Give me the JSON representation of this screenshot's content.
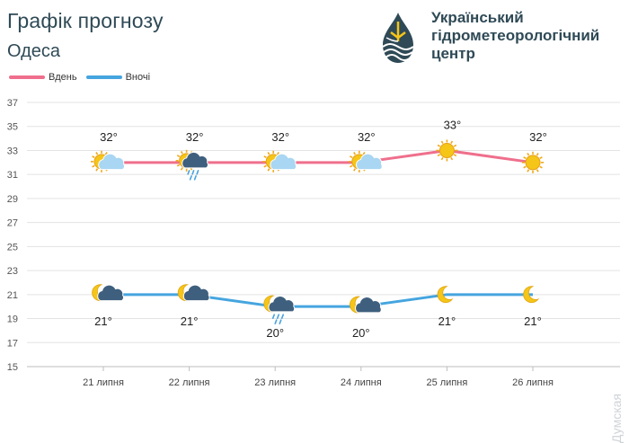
{
  "header": {
    "title": "Графік прогнозу",
    "city": "Одеса"
  },
  "logo": {
    "line1": "Український",
    "line2": "гідрометеорологічний",
    "line3": "центр"
  },
  "colors": {
    "day": "#ef6f8c",
    "night": "#45a5df",
    "text": "#2f4a56",
    "grid": "#e3e3e3",
    "sun": "#f5c518",
    "moon": "#f5c518",
    "cloud_light": "#a9d6f2",
    "cloud_dark": "#3f5f7e"
  },
  "chart_data": {
    "type": "line",
    "title": "Графік прогнозу",
    "subtitle": "Одеса",
    "categories": [
      "21 липня",
      "22 липня",
      "23 липня",
      "24 липня",
      "25 липня",
      "26 липня"
    ],
    "series": [
      {
        "name": "Вдень",
        "values": [
          32,
          32,
          32,
          32,
          33,
          32
        ],
        "labels": [
          "32°",
          "32°",
          "32°",
          "32°",
          "33°",
          "32°"
        ],
        "icons": [
          "sun-partly-cloudy-icon",
          "sun-cloud-rain-icon",
          "sun-partly-cloudy-icon",
          "sun-partly-cloudy-icon",
          "sun-icon",
          "sun-icon"
        ]
      },
      {
        "name": "Вночі",
        "values": [
          21,
          21,
          20,
          20,
          21,
          21
        ],
        "labels": [
          "21°",
          "21°",
          "20°",
          "20°",
          "21°",
          "21°"
        ],
        "icons": [
          "moon-cloud-icon",
          "moon-cloud-icon",
          "moon-cloud-rain-icon",
          "moon-cloud-icon",
          "moon-icon",
          "moon-icon"
        ]
      }
    ],
    "y_ticks": [
      15,
      17,
      19,
      21,
      23,
      25,
      27,
      29,
      31,
      33,
      35,
      37
    ],
    "ylim": [
      15,
      37
    ],
    "grid": true,
    "legend": "top-left"
  },
  "watermark": "Думская"
}
